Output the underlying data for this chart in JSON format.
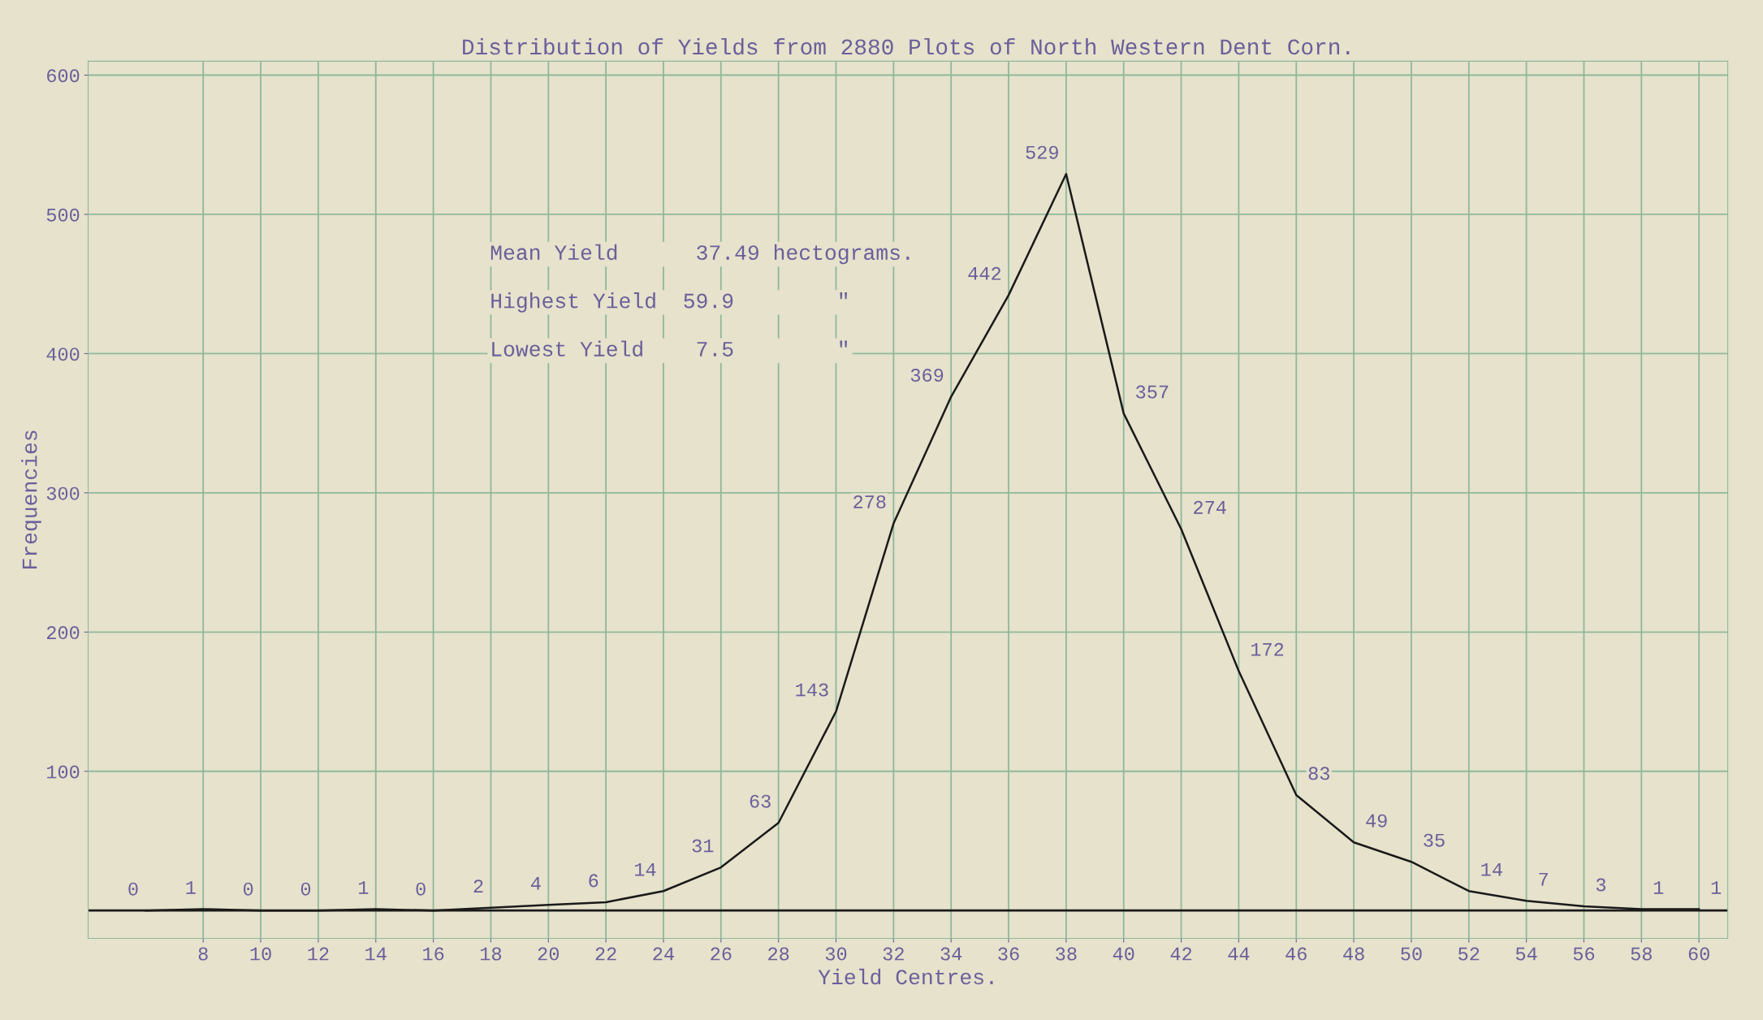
{
  "chart_data": {
    "type": "line",
    "title": "Distribution of Yields from 2880 Plots of North Western Dent Corn.",
    "xlabel": "Yield Centres.",
    "ylabel": "Frequencies",
    "x": [
      6,
      8,
      10,
      12,
      14,
      16,
      18,
      20,
      22,
      24,
      26,
      28,
      30,
      32,
      34,
      36,
      38,
      40,
      42,
      44,
      46,
      48,
      50,
      52,
      54,
      56,
      58,
      60
    ],
    "series": [
      {
        "color": "#1a1a1a",
        "values": [
          0,
          1,
          0,
          0,
          1,
          0,
          2,
          4,
          6,
          14,
          31,
          63,
          143,
          278,
          369,
          442,
          529,
          357,
          274,
          172,
          83,
          49,
          35,
          14,
          7,
          3,
          1,
          1
        ]
      }
    ],
    "data_labels": true,
    "xlim": [
      4,
      61
    ],
    "xticks": [
      8,
      10,
      12,
      14,
      16,
      18,
      20,
      22,
      24,
      26,
      28,
      30,
      32,
      34,
      36,
      38,
      40,
      42,
      44,
      46,
      48,
      50,
      52,
      54,
      56,
      58,
      60
    ],
    "ylim": [
      -20,
      610
    ],
    "yticks": [
      100,
      200,
      300,
      400,
      500,
      600
    ],
    "grid": true,
    "marker": "none",
    "line_style": "solid",
    "annotations": [
      "Mean Yield      37.49 hectograms.",
      "Highest Yield  59.9        \"",
      "Lowest Yield    7.5        \""
    ]
  }
}
